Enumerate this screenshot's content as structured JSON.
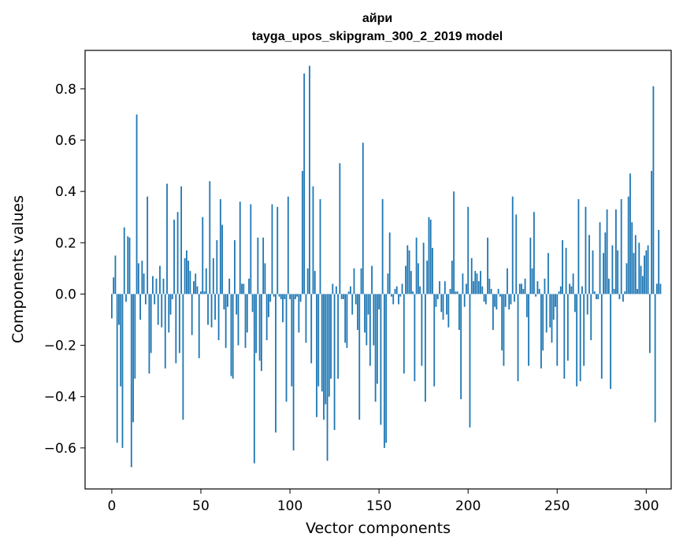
{
  "chart_data": {
    "type": "bar",
    "title": "айри",
    "subtitle": "tayga_upos_skipgram_300_2_2019 model",
    "xlabel": "Vector components",
    "ylabel": "Components values",
    "xlim": [
      -15,
      314
    ],
    "ylim": [
      -0.76,
      0.95
    ],
    "xticks": [
      0,
      50,
      100,
      150,
      200,
      250,
      300
    ],
    "yticks": [
      -0.6,
      -0.4,
      -0.2,
      0.0,
      0.2,
      0.4,
      0.6,
      0.8
    ],
    "ytick_labels": [
      "−0.6",
      "−0.4",
      "−0.2",
      "0.0",
      "0.2",
      "0.4",
      "0.6",
      "0.8"
    ],
    "xtick_labels": [
      "0",
      "50",
      "100",
      "150",
      "200",
      "250",
      "300"
    ],
    "bar_color": "#1f77b4",
    "grid": false,
    "values": [
      -0.095,
      0.065,
      0.15,
      -0.58,
      -0.12,
      -0.36,
      -0.6,
      0.26,
      -0.03,
      0.225,
      0.22,
      -0.675,
      -0.5,
      -0.33,
      0.7,
      0.12,
      -0.1,
      0.13,
      0.08,
      -0.04,
      0.38,
      -0.31,
      -0.23,
      0.07,
      -0.04,
      0.06,
      -0.12,
      0.11,
      -0.13,
      0.06,
      -0.29,
      0.43,
      -0.15,
      -0.08,
      -0.02,
      0.29,
      -0.27,
      0.32,
      -0.23,
      0.42,
      -0.49,
      0.14,
      0.17,
      0.13,
      0.09,
      -0.16,
      0.05,
      0.08,
      0.03,
      -0.25,
      0.01,
      0.3,
      0.01,
      0.1,
      -0.12,
      0.44,
      -0.13,
      0.14,
      -0.1,
      0.21,
      -0.18,
      0.37,
      0.27,
      -0.06,
      -0.21,
      -0.05,
      0.06,
      -0.32,
      -0.33,
      0.21,
      -0.08,
      -0.2,
      0.36,
      0.04,
      0.04,
      -0.21,
      -0.15,
      0.06,
      0.35,
      -0.07,
      -0.66,
      -0.23,
      0.22,
      -0.26,
      -0.3,
      0.22,
      0.12,
      -0.18,
      -0.09,
      -0.03,
      0.35,
      -0.01,
      -0.54,
      0.34,
      -0.01,
      -0.02,
      -0.11,
      -0.02,
      -0.42,
      0.38,
      -0.02,
      -0.36,
      -0.61,
      -0.02,
      -0.01,
      -0.15,
      -0.03,
      0.48,
      0.86,
      -0.19,
      0.1,
      0.89,
      -0.27,
      0.42,
      0.09,
      -0.48,
      -0.36,
      0.37,
      -0.38,
      -0.49,
      -0.43,
      -0.65,
      -0.4,
      -0.33,
      0.04,
      -0.53,
      0.03,
      -0.33,
      0.51,
      -0.02,
      -0.02,
      -0.19,
      -0.21,
      0.01,
      0.03,
      -0.08,
      0.1,
      -0.04,
      -0.14,
      -0.49,
      0.1,
      0.59,
      -0.15,
      -0.2,
      -0.08,
      -0.28,
      0.11,
      -0.2,
      -0.42,
      -0.35,
      -0.06,
      -0.51,
      0.37,
      -0.6,
      -0.58,
      0.08,
      0.24,
      -0.01,
      -0.04,
      0.02,
      0.03,
      -0.04,
      -0.01,
      0.04,
      -0.31,
      0.11,
      0.19,
      0.17,
      0.09,
      0.01,
      -0.34,
      0.22,
      0.12,
      0.03,
      -0.28,
      0.2,
      -0.42,
      0.13,
      0.3,
      0.29,
      0.18,
      -0.36,
      -0.05,
      -0.02,
      0.05,
      -0.07,
      -0.1,
      0.05,
      -0.08,
      -0.13,
      0.02,
      0.13,
      0.4,
      0.01,
      0.01,
      -0.14,
      -0.41,
      0.08,
      -0.05,
      0.04,
      0.34,
      -0.52,
      0.14,
      0.05,
      0.09,
      0.08,
      0.05,
      0.09,
      0.03,
      -0.03,
      -0.04,
      0.22,
      0.06,
      0.02,
      -0.14,
      -0.05,
      -0.06,
      0.02,
      -0.01,
      -0.22,
      -0.28,
      -0.05,
      0.1,
      -0.06,
      -0.04,
      0.38,
      -0.03,
      0.31,
      -0.34,
      0.04,
      0.04,
      0.02,
      0.06,
      -0.09,
      -0.28,
      0.22,
      0.1,
      0.32,
      -0.01,
      0.05,
      0.02,
      -0.29,
      -0.22,
      0.06,
      -0.15,
      0.16,
      -0.13,
      -0.19,
      -0.1,
      -0.05,
      -0.28,
      0.01,
      0.03,
      0.21,
      -0.33,
      0.18,
      -0.26,
      0.04,
      0.03,
      0.08,
      -0.07,
      -0.36,
      0.37,
      -0.34,
      0.03,
      -0.28,
      0.34,
      -0.08,
      0.23,
      -0.18,
      0.17,
      0.01,
      -0.02,
      -0.02,
      0.28,
      -0.33,
      0.16,
      0.24,
      0.33,
      0.06,
      -0.37,
      0.19,
      0.02,
      0.33,
      0.17,
      -0.02,
      0.37,
      -0.03,
      0.01,
      0.12,
      0.38,
      0.47,
      0.28,
      0.16,
      0.23,
      0.02,
      0.2,
      0.11,
      0.07,
      0.15,
      0.17,
      0.19,
      -0.23,
      0.48,
      0.81,
      -0.5,
      0.04,
      0.25,
      0.04
    ]
  }
}
